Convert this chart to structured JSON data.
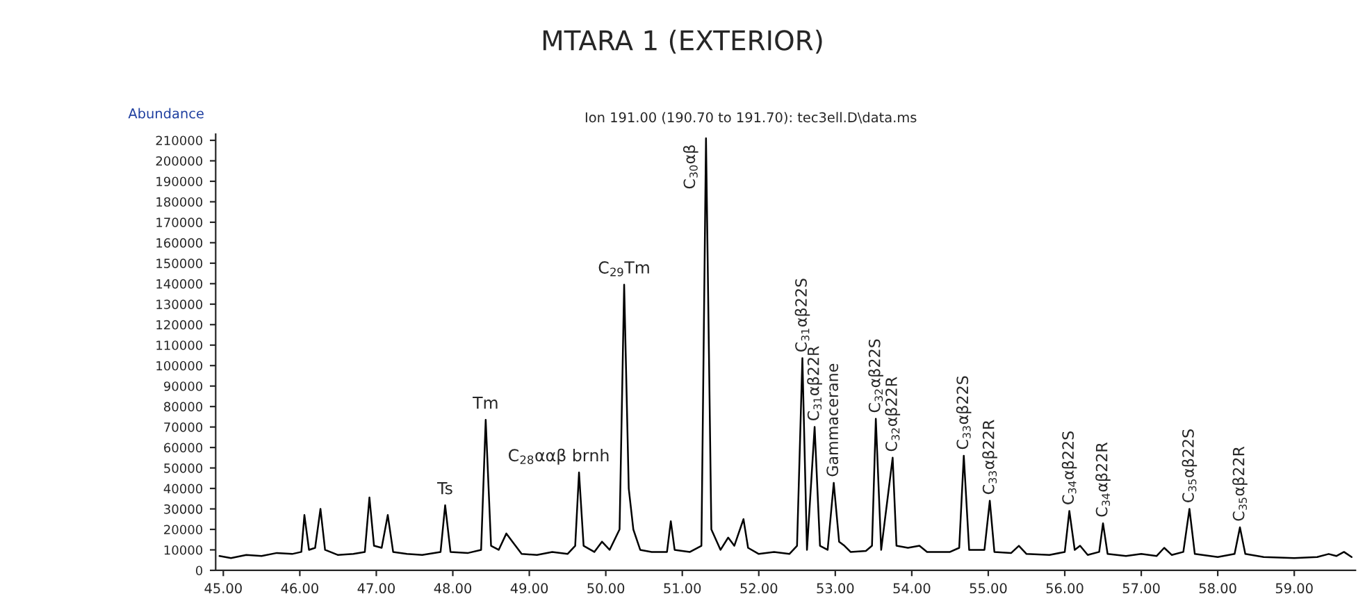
{
  "chart_data": {
    "type": "line",
    "title": "MTARA 1 (EXTERIOR)",
    "subtitle": "Ion 191.00 (190.70 to 191.70): tec3ell.D\\data.ms",
    "ylabel": "Abundance",
    "x": [
      44.95,
      45.1,
      45.3,
      45.5,
      45.7,
      45.9,
      46.02,
      46.06,
      46.12,
      46.2,
      46.27,
      46.33,
      46.5,
      46.7,
      46.85,
      46.91,
      46.97,
      47.07,
      47.15,
      47.22,
      47.4,
      47.6,
      47.84,
      47.9,
      47.97,
      48.2,
      48.37,
      48.43,
      48.5,
      48.6,
      48.7,
      48.78,
      48.9,
      49.1,
      49.3,
      49.5,
      49.6,
      49.65,
      49.71,
      49.85,
      49.95,
      50.05,
      50.18,
      50.24,
      50.3,
      50.36,
      50.45,
      50.6,
      50.8,
      50.85,
      50.9,
      51.1,
      51.25,
      51.31,
      51.38,
      51.5,
      51.6,
      51.68,
      51.8,
      51.86,
      52.0,
      52.2,
      52.4,
      52.5,
      52.57,
      52.63,
      52.73,
      52.8,
      52.9,
      52.98,
      53.05,
      53.12,
      53.2,
      53.4,
      53.48,
      53.53,
      53.6,
      53.75,
      53.8,
      53.95,
      54.1,
      54.2,
      54.5,
      54.62,
      54.68,
      54.75,
      54.95,
      55.02,
      55.08,
      55.3,
      55.4,
      55.5,
      55.8,
      56.0,
      56.06,
      56.13,
      56.2,
      56.3,
      56.45,
      56.5,
      56.56,
      56.8,
      57.0,
      57.2,
      57.3,
      57.4,
      57.55,
      57.63,
      57.7,
      58.0,
      58.22,
      58.29,
      58.36,
      58.6,
      59.0,
      59.3,
      59.45,
      59.55,
      59.65,
      59.75
    ],
    "series": [
      {
        "color": "#000000",
        "values": [
          7000,
          6000,
          7500,
          7000,
          8500,
          8000,
          9000,
          27000,
          10000,
          11000,
          30000,
          10000,
          7500,
          8000,
          9000,
          35600,
          12000,
          11000,
          27000,
          9000,
          8000,
          7500,
          9000,
          31800,
          9000,
          8500,
          10000,
          73500,
          12000,
          10000,
          18000,
          14000,
          8000,
          7500,
          9000,
          8000,
          12000,
          47800,
          12000,
          9000,
          14000,
          10000,
          20000,
          139500,
          40000,
          20000,
          10000,
          9000,
          9000,
          24000,
          10000,
          9000,
          12000,
          211000,
          20000,
          10000,
          16000,
          12000,
          25000,
          11000,
          8000,
          9000,
          8000,
          12000,
          103600,
          10000,
          70000,
          12000,
          10000,
          42700,
          14000,
          12000,
          9000,
          9500,
          12000,
          74000,
          10000,
          55000,
          12000,
          11000,
          12000,
          9000,
          9000,
          11000,
          56000,
          10000,
          10000,
          34000,
          9000,
          8500,
          12000,
          8000,
          7500,
          9000,
          29000,
          10000,
          12000,
          7500,
          9000,
          23000,
          8000,
          7000,
          8000,
          7000,
          11000,
          7500,
          9000,
          30000,
          8000,
          6500,
          8000,
          21000,
          8000,
          6500,
          6000,
          6500,
          8000,
          7000,
          9000,
          6500
        ]
      }
    ],
    "xlim": [
      44.9,
      59.8
    ],
    "ylim": [
      0,
      213000
    ],
    "xticks": [
      {
        "value": 45,
        "label": "45.00"
      },
      {
        "value": 46,
        "label": "46.00"
      },
      {
        "value": 47,
        "label": "47.00"
      },
      {
        "value": 48,
        "label": "48.00"
      },
      {
        "value": 49,
        "label": "49.00"
      },
      {
        "value": 50,
        "label": "50.00"
      },
      {
        "value": 51,
        "label": "51.00"
      },
      {
        "value": 52,
        "label": "52.00"
      },
      {
        "value": 53,
        "label": "53.00"
      },
      {
        "value": 54,
        "label": "54.00"
      },
      {
        "value": 55,
        "label": "55.00"
      },
      {
        "value": 56,
        "label": "56.00"
      },
      {
        "value": 57,
        "label": "57.00"
      },
      {
        "value": 58,
        "label": "58.00"
      },
      {
        "value": 59,
        "label": "59.00"
      }
    ],
    "yticks": [
      0,
      10000,
      20000,
      30000,
      40000,
      50000,
      60000,
      70000,
      80000,
      90000,
      100000,
      110000,
      120000,
      130000,
      140000,
      150000,
      160000,
      170000,
      180000,
      190000,
      200000,
      210000
    ],
    "annotations": [
      {
        "text": "Ts",
        "x": 47.9,
        "y": 31800
      },
      {
        "text": "Tm",
        "x": 48.43,
        "y": 73500
      },
      {
        "text": "C$_{28}$ααβ brnh",
        "x": 49.65,
        "y": 47800
      },
      {
        "text": "C$_{29}$Tm",
        "x": 50.24,
        "y": 139500
      },
      {
        "text": "C$_{30}$αβ",
        "x": 51.31,
        "y": 211000
      },
      {
        "text": "C$_{31}$αβ22S",
        "x": 52.57,
        "y": 103600
      },
      {
        "text": "C$_{31}$αβ22R",
        "x": 52.73,
        "y": 70000
      },
      {
        "text": "Gammacerane",
        "x": 52.98,
        "y": 42700
      },
      {
        "text": "C$_{32}$αβ22S",
        "x": 53.53,
        "y": 74000
      },
      {
        "text": "C$_{32}$αβ22R",
        "x": 53.75,
        "y": 55000
      },
      {
        "text": "C$_{33}$αβ22S",
        "x": 54.68,
        "y": 56000
      },
      {
        "text": "C$_{33}$αβ22R",
        "x": 55.02,
        "y": 34000
      },
      {
        "text": "C$_{34}$αβ22S",
        "x": 56.06,
        "y": 29000
      },
      {
        "text": "C$_{34}$αβ22R",
        "x": 56.5,
        "y": 23000
      },
      {
        "text": "C$_{35}$αβ22S",
        "x": 57.63,
        "y": 30000
      },
      {
        "text": "C$_{35}$αβ22R",
        "x": 58.29,
        "y": 21000
      }
    ],
    "grid": false,
    "legend": false
  }
}
